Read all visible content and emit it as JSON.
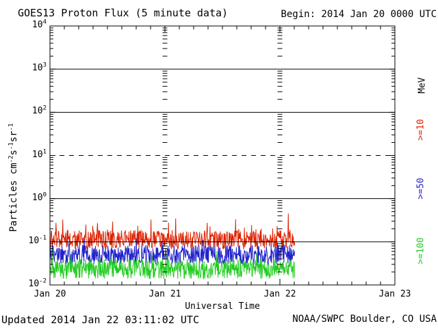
{
  "header": {
    "title": "GOES13 Proton Flux (5 minute data)",
    "begin_label": "Begin: 2014 Jan 20 0000 UTC"
  },
  "footer": {
    "updated": "Updated 2014 Jan 22 03:11:02 UTC",
    "source": "NOAA/SWPC Boulder, CO USA"
  },
  "chart_data": {
    "type": "line",
    "title": "GOES13 Proton Flux (5 minute data)",
    "xlabel": "Universal Time",
    "ylabel_parts": [
      "Particles cm",
      "-2",
      "s",
      "-1",
      "sr",
      "-1"
    ],
    "x_tick_labels": [
      "Jan 20",
      "Jan 21",
      "Jan 22",
      "Jan 23"
    ],
    "x_range_days": 3,
    "y_log_min": -2,
    "y_log_max": 4,
    "y_tick_exponents": [
      "4",
      "3",
      "2",
      "1",
      "0",
      "-1",
      "-2"
    ],
    "solid_gridline_exponents": [
      3,
      2,
      0,
      -1
    ],
    "dashed_gridline_exponents": [
      1
    ],
    "vertical_guide_days": [
      1,
      2
    ],
    "legend_units": "MeV",
    "sample_minutes": 5,
    "data_start_day": 0,
    "data_end_day": 2.13,
    "series": [
      {
        "label": ">=10",
        "color": "#dd2200",
        "approx_median_flux": 0.11,
        "approx_flux_range": [
          0.07,
          0.45
        ],
        "base_log10": -0.95,
        "noise_dex": 0.22,
        "spike_prob": 0.06,
        "spike_dex": 0.45,
        "seed": 20140120
      },
      {
        "label": ">=50",
        "color": "#2222cc",
        "approx_median_flux": 0.05,
        "approx_flux_range": [
          0.03,
          0.12
        ],
        "base_log10": -1.3,
        "noise_dex": 0.23,
        "spike_prob": 0.05,
        "spike_dex": 0.32,
        "seed": 20140150
      },
      {
        "label": ">=100",
        "color": "#22cc22",
        "approx_median_flux": 0.024,
        "approx_flux_range": [
          0.013,
          0.06
        ],
        "base_log10": -1.63,
        "noise_dex": 0.23,
        "spike_prob": 0.05,
        "spike_dex": 0.3,
        "seed": 20140199
      }
    ]
  }
}
